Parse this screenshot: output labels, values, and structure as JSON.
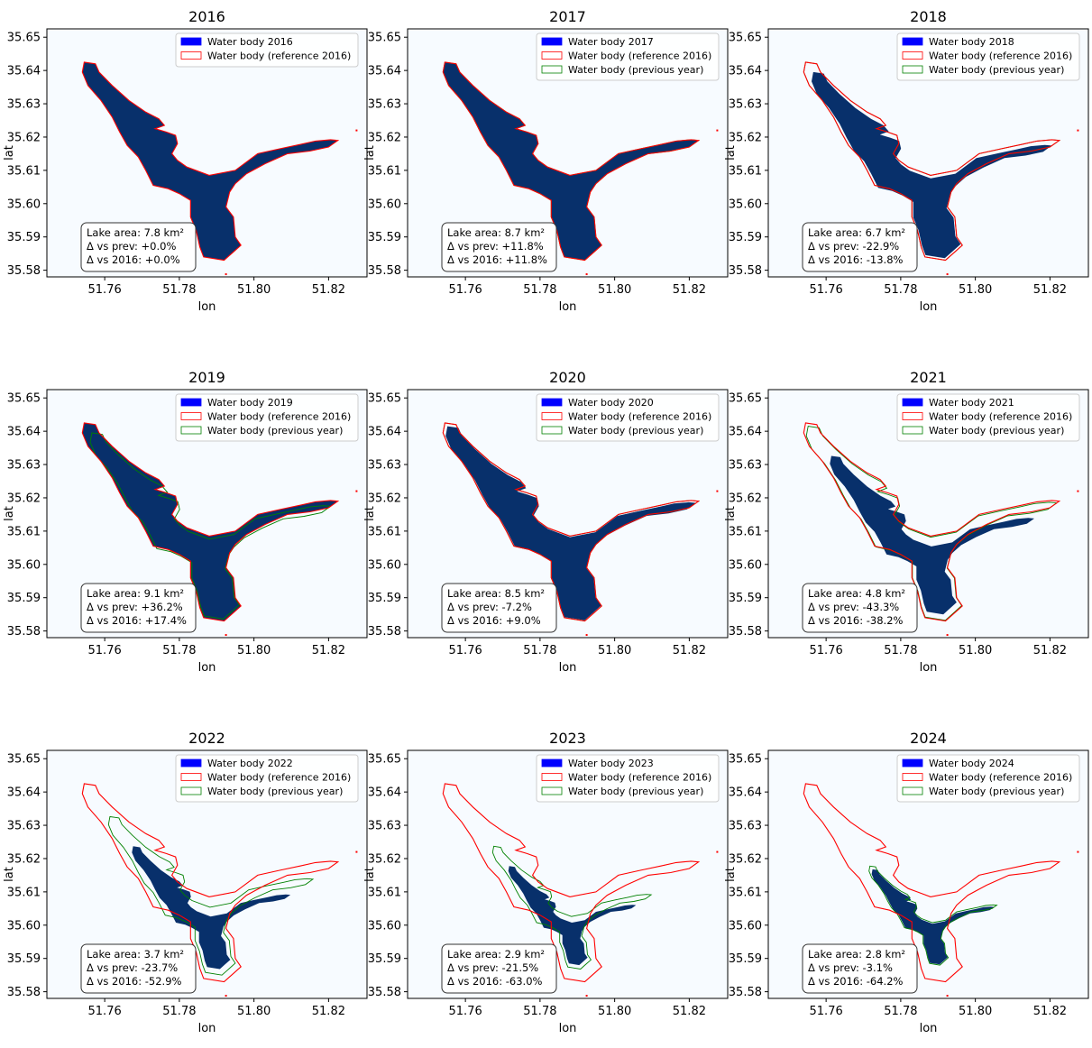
{
  "figure": {
    "xlabel": "lon",
    "ylabel": "lat",
    "x_ticks": [
      "51.76",
      "51.78",
      "51.80",
      "51.82"
    ],
    "y_ticks": [
      "35.65",
      "35.64",
      "35.63",
      "35.62",
      "35.61",
      "35.60",
      "35.59",
      "35.58"
    ],
    "legend_previous_label": "Water body (previous year)",
    "legend_reference_label": "Water body (reference 2016)"
  },
  "colors": {
    "water": "#08306b",
    "background": "#f7fbff",
    "legend_water_patch": "#0000ff",
    "reference_outline": "#ff0000",
    "previous_outline": "#008000"
  },
  "chart_data": [
    {
      "type": "map",
      "title": "2016",
      "legend_water": "Water body 2016",
      "has_previous": false,
      "scale": 1.0,
      "dx": 0.0,
      "dy": 0.0,
      "area_km2": 7.8,
      "delta_prev_pct": 0.0,
      "delta_2016_pct": 0.0,
      "info": [
        "Lake area: 7.8 km²",
        "Δ vs prev: +0.0%",
        "Δ vs 2016: +0.0%"
      ]
    },
    {
      "type": "map",
      "title": "2017",
      "legend_water": "Water body 2017",
      "has_previous": true,
      "scale": 1.0,
      "dx": 0.0,
      "dy": 0.0,
      "area_km2": 8.7,
      "delta_prev_pct": 11.8,
      "delta_2016_pct": 11.8,
      "info": [
        "Lake area: 8.7 km²",
        "Δ vs prev: +11.8%",
        "Δ vs 2016: +11.8%"
      ]
    },
    {
      "type": "map",
      "title": "2018",
      "legend_water": "Water body 2018",
      "has_previous": true,
      "scale": 0.94,
      "dx": 0.0,
      "dy": 0.0,
      "area_km2": 6.7,
      "delta_prev_pct": -22.9,
      "delta_2016_pct": -13.8,
      "info": [
        "Lake area: 6.7 km²",
        "Δ vs prev: -22.9%",
        "Δ vs 2016: -13.8%"
      ]
    },
    {
      "type": "map",
      "title": "2019",
      "legend_water": "Water body 2019",
      "has_previous": true,
      "scale": 1.0,
      "dx": 0.0,
      "dy": 0.0,
      "area_km2": 9.1,
      "delta_prev_pct": 36.2,
      "delta_2016_pct": 17.4,
      "info": [
        "Lake area: 9.1 km²",
        "Δ vs prev: +36.2%",
        "Δ vs 2016: +17.4%"
      ]
    },
    {
      "type": "map",
      "title": "2020",
      "legend_water": "Water body 2020",
      "has_previous": true,
      "scale": 0.98,
      "dx": 0.0,
      "dy": 0.0,
      "area_km2": 8.5,
      "delta_prev_pct": -7.2,
      "delta_2016_pct": 9.0,
      "info": [
        "Lake area: 8.5 km²",
        "Δ vs prev: -7.2%",
        "Δ vs 2016: +9.0%"
      ]
    },
    {
      "type": "map",
      "title": "2021",
      "legend_water": "Water body 2021",
      "has_previous": true,
      "scale": 0.8,
      "dx": 0.0,
      "dy": 0.0,
      "area_km2": 4.8,
      "delta_prev_pct": -43.3,
      "delta_2016_pct": -38.2,
      "info": [
        "Lake area: 4.8 km²",
        "Δ vs prev: -43.3%",
        "Δ vs 2016: -38.2%"
      ]
    },
    {
      "type": "map",
      "title": "2022",
      "legend_water": "Water body 2022",
      "has_previous": true,
      "scale": 0.62,
      "dx": 0.0,
      "dy": 0.0,
      "area_km2": 3.7,
      "delta_prev_pct": -23.7,
      "delta_2016_pct": -52.9,
      "info": [
        "Lake area: 3.7 km²",
        "Δ vs prev: -23.7%",
        "Δ vs 2016: -52.9%"
      ]
    },
    {
      "type": "map",
      "title": "2023",
      "legend_water": "Water body 2023",
      "has_previous": true,
      "scale": 0.5,
      "dx": 0.0,
      "dy": 0.0,
      "area_km2": 2.9,
      "delta_prev_pct": -21.5,
      "delta_2016_pct": -63.0,
      "info": [
        "Lake area: 2.9 km²",
        "Δ vs prev: -21.5%",
        "Δ vs 2016: -63.0%"
      ]
    },
    {
      "type": "map",
      "title": "2024",
      "legend_water": "Water body 2024",
      "has_previous": true,
      "scale": 0.48,
      "dx": 0.0,
      "dy": 0.0,
      "area_km2": 2.8,
      "delta_prev_pct": -3.1,
      "delta_2016_pct": -64.2,
      "info": [
        "Lake area: 2.8 km²",
        "Δ vs prev: -3.1%",
        "Δ vs 2016: -64.2%"
      ]
    }
  ]
}
